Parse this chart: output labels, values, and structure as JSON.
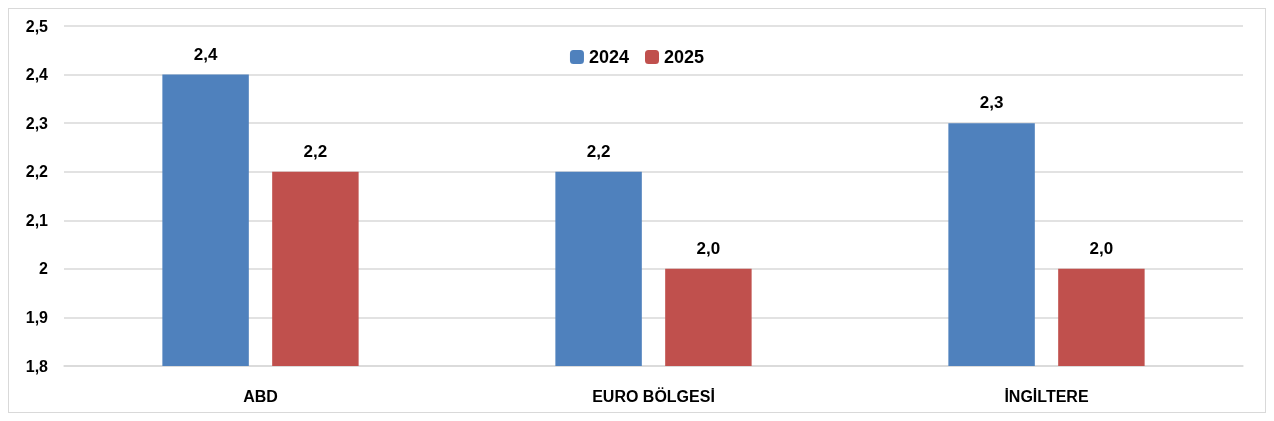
{
  "chart_data": {
    "type": "bar",
    "categories": [
      "ABD",
      "EURO BÖLGESİ",
      "İNGİLTERE"
    ],
    "series": [
      {
        "name": "2024",
        "color": "#4f81bd",
        "values": [
          2.4,
          2.2,
          2.3
        ],
        "value_labels": [
          "2,4",
          "2,2",
          "2,3"
        ]
      },
      {
        "name": "2025",
        "color": "#c0504d",
        "values": [
          2.2,
          2.0,
          2.0
        ],
        "value_labels": [
          "2,2",
          "2,0",
          "2,0"
        ]
      }
    ],
    "ylim": [
      1.8,
      2.5
    ],
    "yticks": [
      {
        "value": 1.8,
        "label": "1,8"
      },
      {
        "value": 1.9,
        "label": "1,9"
      },
      2,
      {
        "value": 2.1,
        "label": "2,1"
      },
      {
        "value": 2.2,
        "label": "2,2"
      },
      {
        "value": 2.3,
        "label": "2,3"
      },
      {
        "value": 2.4,
        "label": "2,4"
      },
      {
        "value": 2.5,
        "label": "2,5"
      }
    ],
    "grid": "y",
    "legend": "top"
  }
}
